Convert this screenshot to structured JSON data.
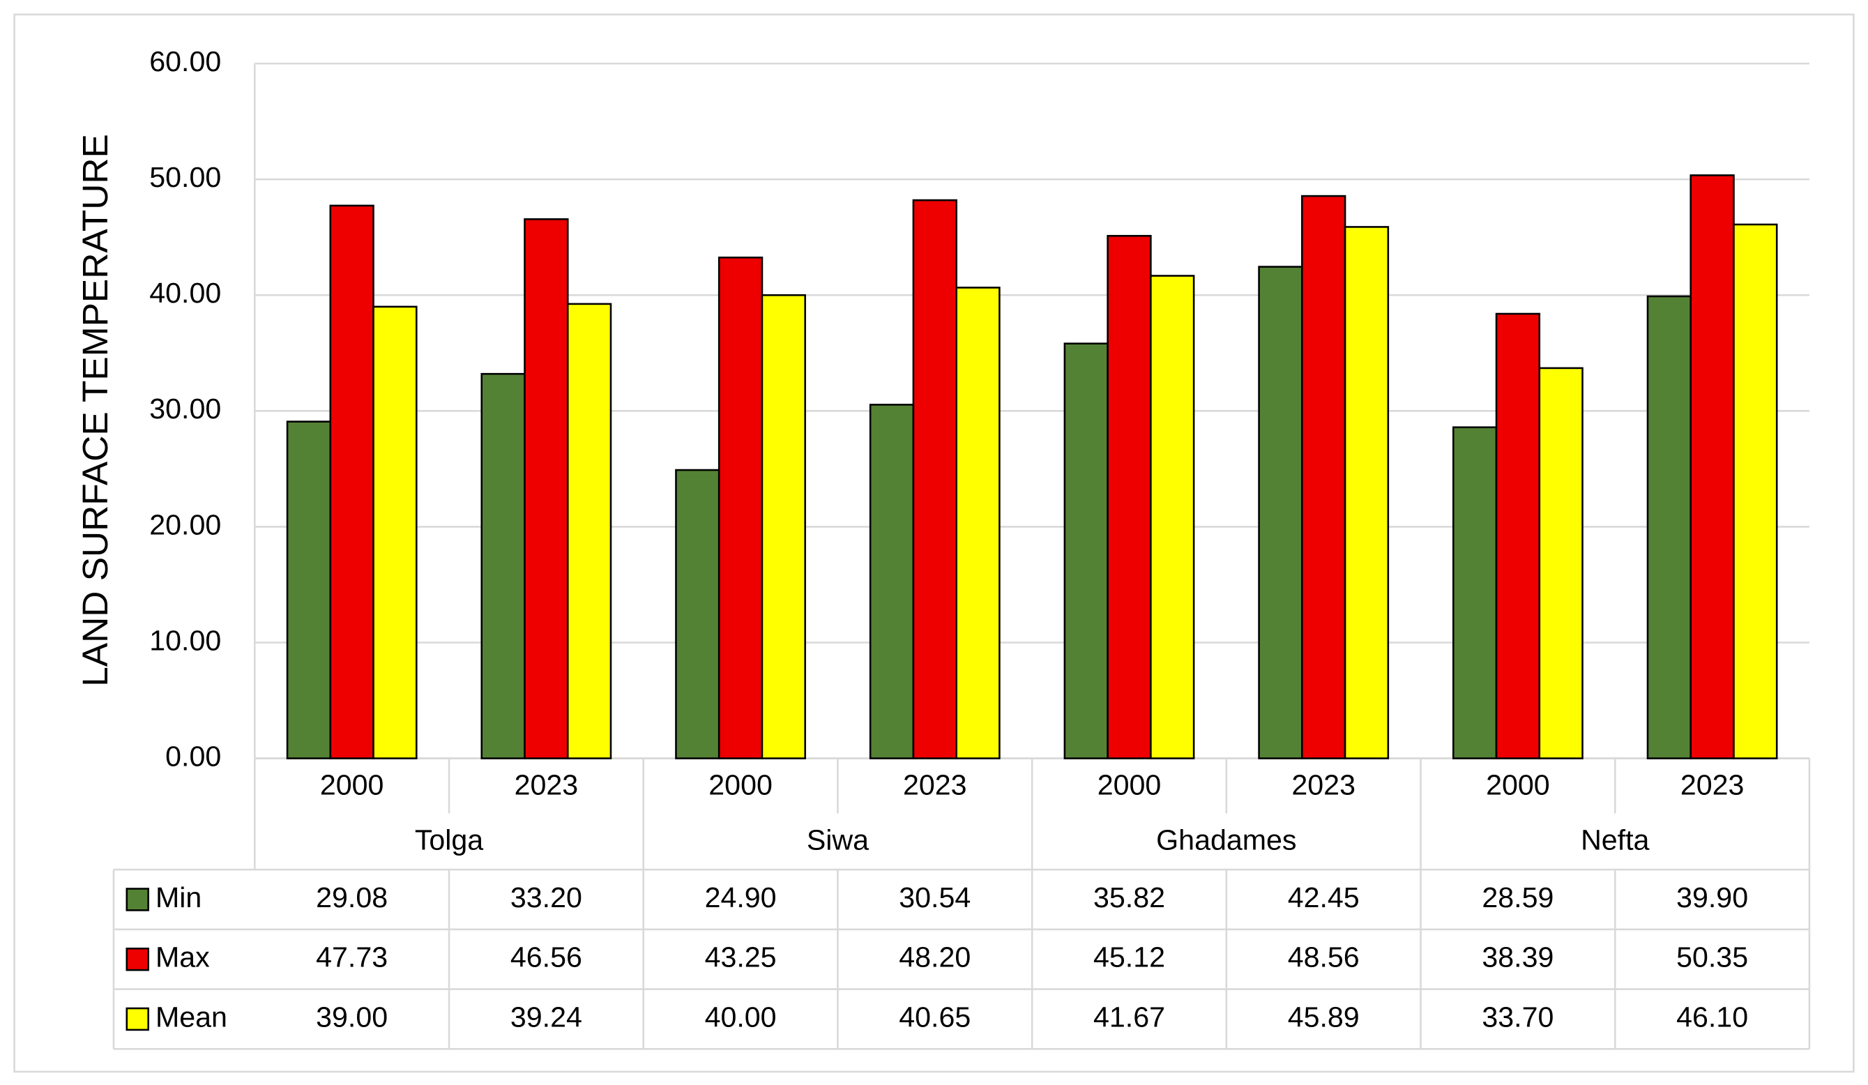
{
  "chart_data": {
    "type": "bar",
    "y_label": "LAND SURFACE TEMPERATURE",
    "categories": [
      "2000",
      "2023",
      "2000",
      "2023",
      "2000",
      "2023",
      "2000",
      "2023"
    ],
    "groups": [
      "Tolga",
      "Siwa",
      "Ghadames",
      "Nefta"
    ],
    "series": [
      {
        "name": "Min",
        "color": "#548235",
        "values": [
          29.08,
          33.2,
          24.9,
          30.54,
          35.82,
          42.45,
          28.59,
          39.9
        ],
        "value_labels": [
          "29.08",
          "33.20",
          "24.90",
          "30.54",
          "35.82",
          "42.45",
          "28.59",
          "39.90"
        ]
      },
      {
        "name": "Max",
        "color": "#ee0000",
        "values": [
          47.73,
          46.56,
          43.25,
          48.2,
          45.12,
          48.56,
          38.39,
          50.35
        ],
        "value_labels": [
          "47.73",
          "46.56",
          "43.25",
          "48.20",
          "45.12",
          "48.56",
          "38.39",
          "50.35"
        ]
      },
      {
        "name": "Mean",
        "color": "#ffff00",
        "values": [
          39.0,
          39.24,
          40.0,
          40.65,
          41.67,
          45.89,
          33.7,
          46.1
        ],
        "value_labels": [
          "39.00",
          "39.24",
          "40.00",
          "40.65",
          "41.67",
          "45.89",
          "33.70",
          "46.10"
        ]
      }
    ],
    "ylim": [
      0,
      60
    ],
    "yticks": [
      {
        "value": 0,
        "label": "0.00"
      },
      {
        "value": 10,
        "label": "10.00"
      },
      {
        "value": 20,
        "label": "20.00"
      },
      {
        "value": 30,
        "label": "30.00"
      },
      {
        "value": 40,
        "label": "40.00"
      },
      {
        "value": 50,
        "label": "50.00"
      },
      {
        "value": 60,
        "label": "60.00"
      }
    ],
    "grid": true
  }
}
